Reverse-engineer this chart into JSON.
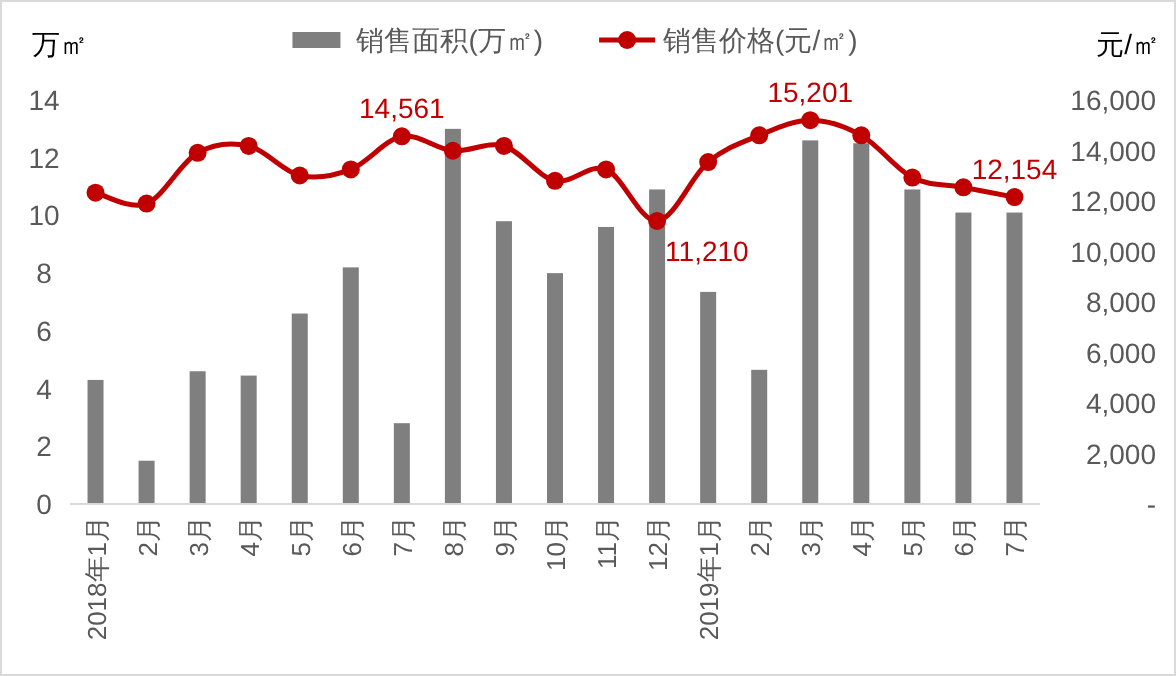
{
  "chart_data": {
    "type": "bar",
    "ylabel": "万㎡",
    "y2label": "元/㎡",
    "legend": "top",
    "grid": false,
    "marker": "circle",
    "categories": [
      "2018年1月",
      "2月",
      "3月",
      "4月",
      "5月",
      "6月",
      "7月",
      "8月",
      "9月",
      "10月",
      "11月",
      "12月",
      "2019年1月",
      "2月",
      "3月",
      "4月",
      "5月",
      "6月",
      "7月"
    ],
    "series": [
      {
        "name": "销售面积(万㎡)",
        "color": "#7f7f7f",
        "values": [
          4.3,
          1.5,
          4.6,
          4.45,
          6.6,
          8.2,
          2.8,
          13.0,
          9.8,
          8.0,
          9.6,
          10.9,
          7.35,
          4.65,
          12.6,
          12.5,
          10.9,
          10.1,
          10.1
        ]
      },
      {
        "name": "销售价格(元/㎡)",
        "type": "line",
        "axis": "y2",
        "color": "#c00000",
        "values": [
          12330,
          11900,
          13910,
          14180,
          13010,
          13250,
          14561,
          13990,
          14180,
          12800,
          13250,
          11210,
          13540,
          14600,
          15201,
          14600,
          12930,
          12540,
          12154
        ],
        "value_labels": [
          null,
          null,
          null,
          null,
          null,
          null,
          "14,561",
          null,
          null,
          null,
          null,
          "11,210",
          null,
          null,
          "15,201",
          null,
          null,
          null,
          "12,154"
        ]
      }
    ],
    "ylim": [
      0,
      14
    ],
    "yticks": [
      0,
      2,
      4,
      6,
      8,
      10,
      12,
      14
    ],
    "y2lim": [
      0,
      16000
    ],
    "y2ticks": [
      {
        "value": 0,
        "label": "-"
      },
      {
        "value": 2000,
        "label": "2,000"
      },
      {
        "value": 4000,
        "label": "4,000"
      },
      {
        "value": 6000,
        "label": "6,000"
      },
      {
        "value": 8000,
        "label": "8,000"
      },
      {
        "value": 10000,
        "label": "10,000"
      },
      {
        "value": 12000,
        "label": "12,000"
      },
      {
        "value": 14000,
        "label": "14,000"
      },
      {
        "value": 16000,
        "label": "16,000"
      }
    ]
  }
}
